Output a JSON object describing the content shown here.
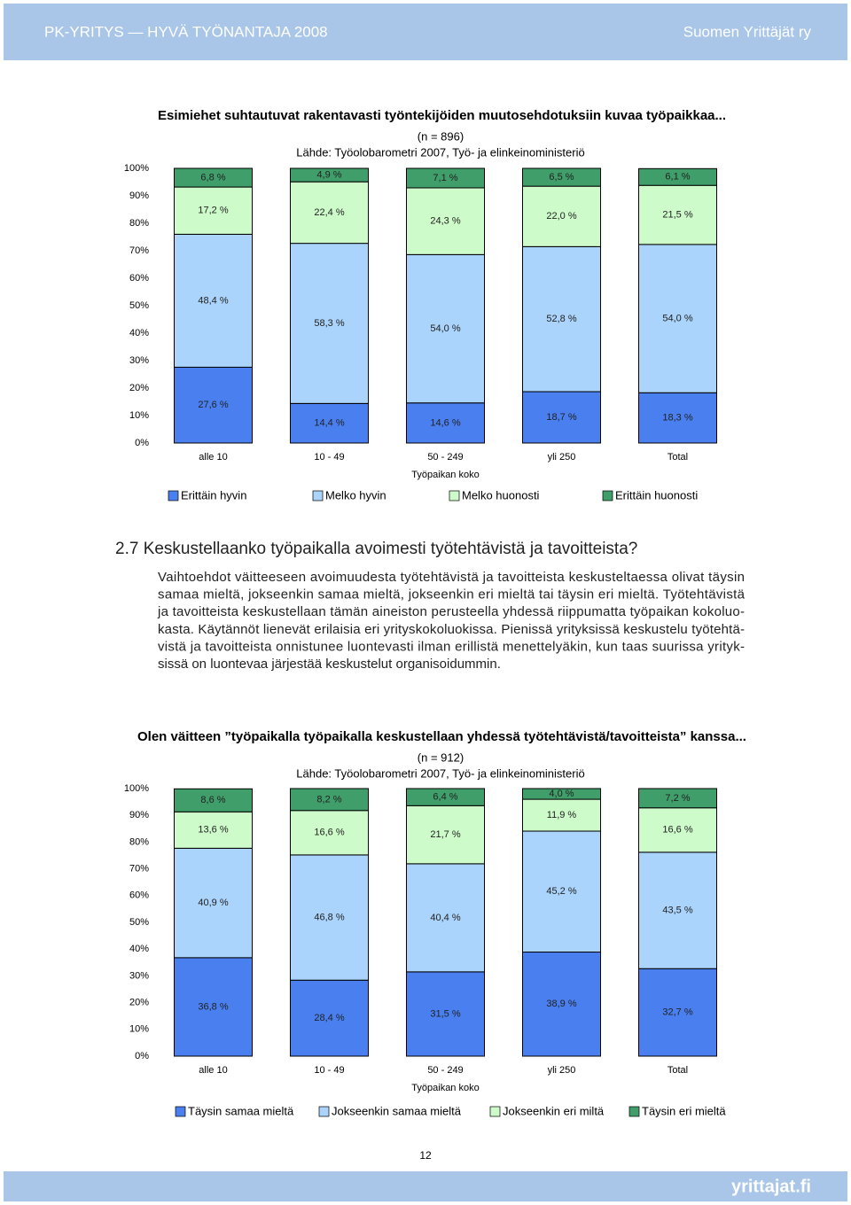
{
  "header": {
    "left": "PK-YRITYS — HYVÄ TYÖNANTAJA 2008",
    "right": "Suomen Yrittäjät ry"
  },
  "chart_data": [
    {
      "type": "bar",
      "stacked": true,
      "title": "Esimiehet suhtautuvat rakentavasti työntekijöiden muutosehdotuksiin kuvaa työpaikkaa...",
      "subtitle": "(n = 896)",
      "source": "Lähde: Työolobarometri 2007, Työ- ja elinkeinoministeriö",
      "x_label": "Työpaikan koko",
      "categories": [
        "alle 10",
        "10 - 49",
        "50 - 249",
        "yli 250",
        "Total"
      ],
      "ylim": [
        0,
        100
      ],
      "yticks": [
        {
          "value": 0,
          "label": "0%"
        },
        {
          "value": 10,
          "label": "10%"
        },
        {
          "value": 20,
          "label": "20%"
        },
        {
          "value": 30,
          "label": "30%"
        },
        {
          "value": 40,
          "label": "40%"
        },
        {
          "value": 50,
          "label": "50%"
        },
        {
          "value": 60,
          "label": "60%"
        },
        {
          "value": 70,
          "label": "70%"
        },
        {
          "value": 80,
          "label": "80%"
        },
        {
          "value": 90,
          "label": "90%"
        },
        {
          "value": 100,
          "label": "100%"
        }
      ],
      "series": [
        {
          "name": "Erittäin hyvin",
          "color": "#4a7ff0",
          "values": [
            27.6,
            14.4,
            14.6,
            18.7,
            18.3
          ],
          "value_labels": [
            "27,6 %",
            "14,4 %",
            "14,6 %",
            "18,7 %",
            "18,3 %"
          ]
        },
        {
          "name": "Melko hyvin",
          "color": "#aad4fb",
          "values": [
            48.4,
            58.3,
            54.0,
            52.8,
            54.0
          ],
          "value_labels": [
            "48,4 %",
            "58,3 %",
            "54,0 %",
            "52,8 %",
            "54,0 %"
          ]
        },
        {
          "name": "Melko huonosti",
          "color": "#cdfbca",
          "values": [
            17.2,
            22.4,
            24.3,
            22.0,
            21.5
          ],
          "value_labels": [
            "17,2 %",
            "22,4 %",
            "24,3 %",
            "22,0 %",
            "21,5 %"
          ]
        },
        {
          "name": "Erittäin huonosti",
          "color": "#3f9e6a",
          "values": [
            6.8,
            4.9,
            7.1,
            6.5,
            6.1
          ],
          "value_labels": [
            "6,8 %",
            "4,9 %",
            "7,1 %",
            "6,5 %",
            "6,1 %"
          ]
        }
      ]
    },
    {
      "type": "bar",
      "stacked": true,
      "title": "Olen väitteen ”työpaikalla työpaikalla keskustellaan yhdessä työtehtävistä/tavoitteista” kanssa...",
      "subtitle": "(n = 912)",
      "source": "Lähde: Työolobarometri 2007, Työ- ja elinkeinoministeriö",
      "x_label": "Työpaikan koko",
      "categories": [
        "alle 10",
        "10 - 49",
        "50 - 249",
        "yli 250",
        "Total"
      ],
      "ylim": [
        0,
        100
      ],
      "yticks": [
        {
          "value": 0,
          "label": "0%"
        },
        {
          "value": 10,
          "label": "10%"
        },
        {
          "value": 20,
          "label": "20%"
        },
        {
          "value": 30,
          "label": "30%"
        },
        {
          "value": 40,
          "label": "40%"
        },
        {
          "value": 50,
          "label": "50%"
        },
        {
          "value": 60,
          "label": "60%"
        },
        {
          "value": 70,
          "label": "70%"
        },
        {
          "value": 80,
          "label": "80%"
        },
        {
          "value": 90,
          "label": "90%"
        },
        {
          "value": 100,
          "label": "100%"
        }
      ],
      "series": [
        {
          "name": "Täysin samaa mieltä",
          "color": "#4a7ff0",
          "values": [
            36.8,
            28.4,
            31.5,
            38.9,
            32.7
          ],
          "value_labels": [
            "36,8 %",
            "28,4 %",
            "31,5 %",
            "38,9 %",
            "32,7 %"
          ]
        },
        {
          "name": "Jokseenkin samaa mieltä",
          "color": "#aad4fb",
          "values": [
            40.9,
            46.8,
            40.4,
            45.2,
            43.5
          ],
          "value_labels": [
            "40,9 %",
            "46,8 %",
            "40,4 %",
            "45,2 %",
            "43,5 %"
          ]
        },
        {
          "name": "Jokseenkin eri miltä",
          "color": "#cdfbca",
          "values": [
            13.6,
            16.6,
            21.7,
            11.9,
            16.6
          ],
          "value_labels": [
            "13,6 %",
            "16,6 %",
            "21,7 %",
            "11,9 %",
            "16,6 %"
          ]
        },
        {
          "name": "Täysin eri mieltä",
          "color": "#3f9e6a",
          "values": [
            8.6,
            8.2,
            6.4,
            4.0,
            7.2
          ],
          "value_labels": [
            "8,6 %",
            "8,2 %",
            "6,4 %",
            "4,0 %",
            "7,2 %"
          ]
        }
      ]
    }
  ],
  "section": {
    "heading": "2.7 Keskustellaanko työpaikalla avoimesti työtehtävistä ja tavoitteista?",
    "lines": [
      "Vaihtoehdot väitteeseen avoimuudesta työtehtävistä ja tavoitteista keskusteltaessa olivat täysin",
      "samaa mieltä, jokseenkin samaa mieltä, jokseenkin eri mieltä tai täysin eri mieltä. Työtehtävistä",
      "ja tavoitteista keskustellaan tämän aineiston perusteella yhdessä riippumatta työpaikan kokoluo-",
      "kasta. Käytännöt lienevät erilaisia eri yrityskokoluokissa. Pienissä yrityksissä keskustelu työtehtä-",
      "vistä ja tavoitteista onnistunee luontevasti ilman erillistä menettelyäkin, kun taas suurissa yrityk-",
      "sissä on luontevaa järjestää keskustelut organisoidummin."
    ]
  },
  "footer": {
    "page": "12",
    "site": "yrittajat.fi"
  }
}
